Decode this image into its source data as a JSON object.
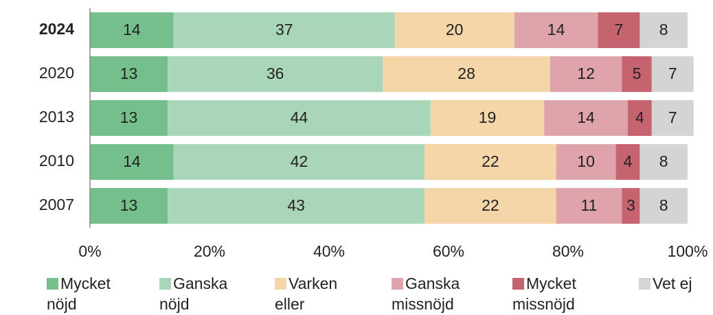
{
  "chart_data": {
    "type": "stacked_bar_horizontal",
    "categories": [
      "2024",
      "2020",
      "2013",
      "2010",
      "2007"
    ],
    "highlight_category": "2024",
    "series": [
      {
        "name": "Mycket nöjd",
        "color": "#74bf8c",
        "values": [
          14,
          13,
          13,
          14,
          13
        ]
      },
      {
        "name": "Ganska nöjd",
        "color": "#a9d6b8",
        "values": [
          37,
          36,
          44,
          42,
          43
        ]
      },
      {
        "name": "Varken eller",
        "color": "#f5d6a8",
        "values": [
          20,
          28,
          19,
          22,
          22
        ]
      },
      {
        "name": "Ganska missnöjd",
        "color": "#dea3ab",
        "values": [
          14,
          12,
          14,
          10,
          11
        ]
      },
      {
        "name": "Mycket missnöjd",
        "color": "#c5636e",
        "values": [
          7,
          5,
          4,
          4,
          3
        ]
      },
      {
        "name": "Vet ej",
        "color": "#d4d4d4",
        "values": [
          8,
          7,
          7,
          8,
          8
        ]
      }
    ],
    "xlim": [
      0,
      100
    ],
    "xticks": [
      {
        "value": 0,
        "label": "0%"
      },
      {
        "value": 20,
        "label": "20%"
      },
      {
        "value": 40,
        "label": "40%"
      },
      {
        "value": 60,
        "label": "60%"
      },
      {
        "value": 80,
        "label": "80%"
      },
      {
        "value": 100,
        "label": "100%"
      }
    ],
    "legend": "bottom"
  }
}
